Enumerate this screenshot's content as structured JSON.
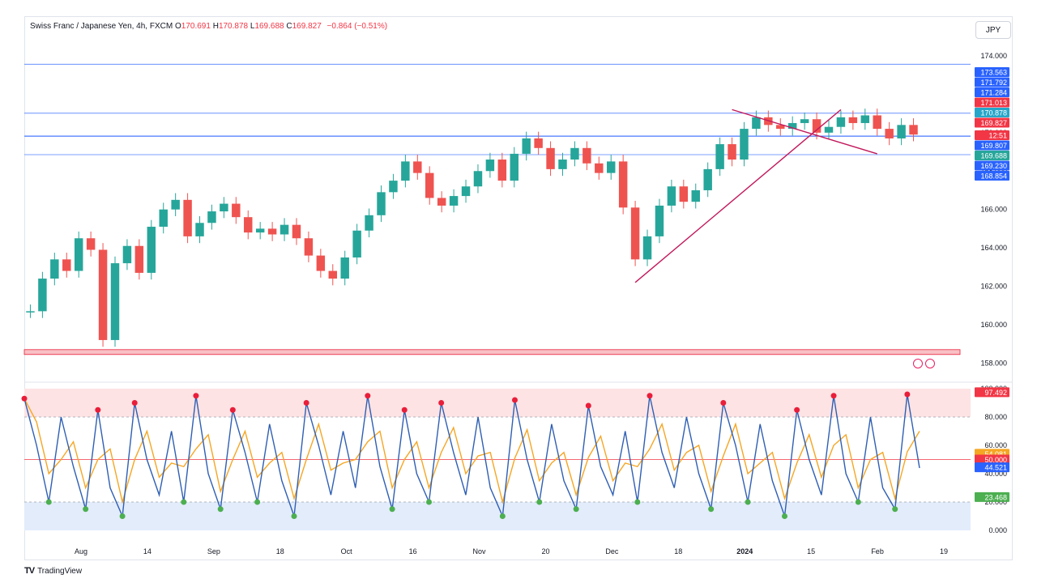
{
  "header": {
    "symbol": "Swiss Franc / Japanese Yen, 4h, FXCM",
    "o_label": "O",
    "o": "170.691",
    "h_label": "H",
    "h": "170.878",
    "l_label": "L",
    "l": "169.688",
    "c_label": "C",
    "c": "169.827",
    "change": "−0.864 (−0.51%)"
  },
  "currency_button": "JPY",
  "footer": {
    "brand": "TradingView",
    "mark": "TV"
  },
  "colors": {
    "up": "#26a69a",
    "down": "#ef5350",
    "line": "#2962ff",
    "trend": "#c2185b",
    "kline": "#2f5fb3",
    "dline": "#f5a623",
    "ob_high": "#e91e3a",
    "os_low": "#4caf50"
  },
  "chart_data": [
    {
      "type": "line",
      "series": [
        {
          "values": [
            160.7,
            162.4,
            163.4,
            162.8,
            164.5,
            163.9,
            159.2,
            163.2,
            164.1,
            162.7,
            165.1,
            166.0,
            166.5,
            164.6,
            165.3,
            165.9,
            166.3,
            165.6,
            164.8,
            165.0,
            164.7,
            165.2,
            164.5,
            163.6,
            162.8,
            162.4,
            163.5,
            164.9,
            165.7,
            166.9,
            167.5,
            168.5,
            167.9,
            166.6,
            166.2,
            166.7,
            167.2,
            168.0,
            168.6,
            167.5,
            168.9,
            169.7,
            169.2,
            168.1,
            168.6,
            169.2,
            168.4,
            167.9,
            168.5,
            166.1,
            163.4,
            164.6,
            166.2,
            167.2,
            166.4,
            167.0,
            168.1,
            169.4,
            168.6,
            170.2,
            170.8,
            170.4,
            170.2,
            170.5,
            170.7,
            170.0,
            170.3,
            170.8,
            170.5,
            170.9,
            170.2,
            169.7,
            170.4,
            169.9
          ]
        }
      ],
      "x_ticks": [
        "Aug",
        "14",
        "Sep",
        "18",
        "Oct",
        "16",
        "Nov",
        "20",
        "Dec",
        "18",
        "2024",
        "15",
        "Feb",
        "19"
      ],
      "y_ticks": [
        "174.000",
        "172.000",
        "170.000",
        "168.000",
        "166.000",
        "164.000",
        "162.000",
        "160.000",
        "158.000"
      ],
      "ylim": [
        157.3,
        174.8
      ],
      "horizontal_levels": [
        "173.563",
        "171.792",
        "171.284",
        "171.013",
        "170.878",
        "169.827",
        "169.807",
        "169.688",
        "169.230",
        "168.854"
      ],
      "price_labels": [
        {
          "text": "173.563",
          "color": "#2962ff"
        },
        {
          "text": "171.792",
          "color": "#2962ff"
        },
        {
          "text": "171.284",
          "color": "#2962ff"
        },
        {
          "text": "171.013",
          "color": "#f23645"
        },
        {
          "text": "170.878",
          "color": "#26a6c9"
        },
        {
          "text": "169.827",
          "color": "#f23645"
        },
        {
          "text": "12:51",
          "color": "#f23645"
        },
        {
          "text": "169.807",
          "color": "#2962ff"
        },
        {
          "text": "169.688",
          "color": "#26a69a"
        },
        {
          "text": "169.230",
          "color": "#2962ff"
        },
        {
          "text": "168.854",
          "color": "#2962ff"
        }
      ],
      "grid": false
    },
    {
      "type": "line",
      "series": [
        {
          "values": [
            93,
            60,
            20,
            80,
            45,
            15,
            85,
            30,
            10,
            90,
            50,
            25,
            70,
            20,
            95,
            40,
            15,
            85,
            55,
            20,
            75,
            35,
            10,
            90,
            60,
            25,
            70,
            30,
            95,
            45,
            15,
            85,
            40,
            20,
            90,
            55,
            25,
            80,
            30,
            10,
            92,
            50,
            20,
            75,
            35,
            15,
            88,
            45,
            25,
            70,
            20,
            95,
            55,
            30,
            80,
            40,
            15,
            90,
            60,
            20,
            75,
            35,
            10,
            85,
            50,
            25,
            95,
            40,
            20,
            80,
            30,
            15,
            96,
            44
          ]
        }
      ],
      "y_ticks": [
        "100.000",
        "80.000",
        "60.000",
        "40.000",
        "20.000",
        "0.000"
      ],
      "ylim": [
        0,
        100
      ],
      "value_labels": [
        {
          "text": "97.492",
          "color": "#f23645"
        },
        {
          "text": "54.081",
          "color": "#f5a623"
        },
        {
          "text": "50.000",
          "color": "#f23645"
        },
        {
          "text": "44.521",
          "color": "#2962ff"
        },
        {
          "text": "23.468",
          "color": "#4caf50"
        }
      ],
      "zones": {
        "overbought": 80,
        "oversold": 20,
        "middle": 50
      }
    }
  ]
}
